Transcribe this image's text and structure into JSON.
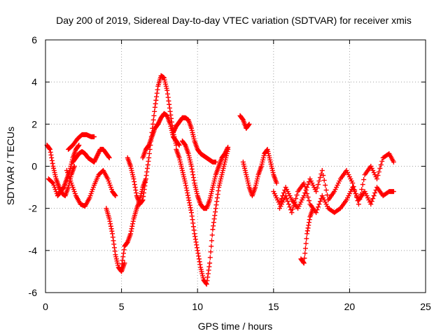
{
  "chart_data": {
    "type": "scatter",
    "title": "Day 200 of 2019, Sidereal Day-to-day VTEC variation (SDTVAR) for receiver xmis",
    "xlabel": "GPS time / hours",
    "ylabel": "SDTVAR / TECUs",
    "xlim": [
      0,
      25
    ],
    "ylim": [
      -6,
      6
    ],
    "xticks": [
      0,
      5,
      10,
      15,
      20,
      25
    ],
    "yticks": [
      -6,
      -4,
      -2,
      0,
      2,
      4,
      6
    ],
    "grid": true,
    "marker": "plus",
    "color": "#ff0000",
    "tracks": [
      {
        "name": "track-1",
        "x": [
          0.1,
          0.3,
          0.5,
          0.7,
          0.9,
          1.1,
          1.3,
          1.5,
          1.7,
          1.9
        ],
        "y": [
          1.0,
          0.8,
          0.0,
          -0.6,
          -1.0,
          -1.3,
          -1.4,
          -1.0,
          -0.4,
          0.0
        ]
      },
      {
        "name": "track-2",
        "x": [
          0.2,
          0.5,
          0.8,
          1.0,
          1.2,
          1.4,
          1.6,
          1.8,
          2.0,
          2.2
        ],
        "y": [
          -0.6,
          -0.8,
          -1.4,
          -1.2,
          -1.0,
          -0.6,
          -0.2,
          0.4,
          0.8,
          1.0
        ]
      },
      {
        "name": "track-3",
        "x": [
          1.5,
          1.8,
          2.1,
          2.4,
          2.7,
          3.0,
          3.2
        ],
        "y": [
          0.8,
          1.0,
          1.3,
          1.5,
          1.5,
          1.4,
          1.4
        ]
      },
      {
        "name": "track-4",
        "x": [
          1.8,
          2.0,
          2.2,
          2.4,
          2.6,
          2.8,
          3.0,
          3.2,
          3.4,
          3.6,
          3.8,
          4.0,
          4.2
        ],
        "y": [
          0.2,
          0.4,
          0.6,
          0.7,
          0.6,
          0.4,
          0.3,
          0.2,
          0.5,
          0.8,
          0.8,
          0.6,
          0.4
        ]
      },
      {
        "name": "track-5",
        "x": [
          1.4,
          1.7,
          2.0,
          2.3,
          2.6,
          2.9,
          3.2,
          3.5,
          3.8,
          4.1,
          4.4,
          4.6
        ],
        "y": [
          -0.2,
          -0.8,
          -1.4,
          -1.8,
          -1.9,
          -1.5,
          -0.9,
          -0.4,
          -0.2,
          -0.6,
          -1.2,
          -1.4
        ]
      },
      {
        "name": "track-6",
        "x": [
          4.0,
          4.2,
          4.4,
          4.6,
          4.8,
          5.0,
          5.2
        ],
        "y": [
          -2.0,
          -2.5,
          -3.2,
          -4.2,
          -4.8,
          -5.0,
          -4.6
        ]
      },
      {
        "name": "track-7",
        "x": [
          5.0,
          5.2,
          5.4,
          5.6,
          5.8,
          6.0,
          6.2,
          6.4,
          6.6
        ],
        "y": [
          -4.8,
          -3.8,
          -3.6,
          -3.2,
          -2.5,
          -2.0,
          -1.6,
          -1.0,
          -0.6
        ]
      },
      {
        "name": "track-8",
        "x": [
          5.4,
          5.6,
          5.8,
          6.0,
          6.2,
          6.4,
          6.6,
          6.8,
          7.0,
          7.2,
          7.4,
          7.6,
          7.8,
          8.0,
          8.2,
          8.4,
          8.6
        ],
        "y": [
          0.4,
          0.0,
          -0.6,
          -1.4,
          -1.8,
          -1.6,
          -0.6,
          0.4,
          1.6,
          2.8,
          3.8,
          4.3,
          4.2,
          3.6,
          2.6,
          1.6,
          1.0
        ]
      },
      {
        "name": "track-9",
        "x": [
          6.4,
          6.6,
          6.8,
          7.0,
          7.2,
          7.4,
          7.6,
          7.8,
          8.0,
          8.2,
          8.4,
          8.6,
          8.8
        ],
        "y": [
          0.4,
          0.8,
          1.0,
          1.4,
          1.8,
          2.0,
          2.3,
          2.5,
          2.4,
          2.0,
          1.4,
          1.2,
          1.0
        ]
      },
      {
        "name": "track-10",
        "x": [
          8.4,
          8.6,
          8.8,
          9.0,
          9.2,
          9.4,
          9.6,
          9.8,
          10.0,
          10.2,
          10.4,
          10.6,
          10.8,
          11.0,
          11.2
        ],
        "y": [
          1.6,
          1.9,
          2.1,
          2.3,
          2.3,
          2.2,
          1.8,
          1.2,
          0.8,
          0.6,
          0.5,
          0.4,
          0.3,
          0.2,
          0.2
        ]
      },
      {
        "name": "track-11",
        "x": [
          8.6,
          8.8,
          9.0,
          9.2,
          9.4,
          9.6,
          9.8,
          10.0,
          10.2,
          10.4,
          10.6,
          10.8,
          11.0,
          11.2,
          11.4,
          11.6,
          11.8,
          12.0
        ],
        "y": [
          0.8,
          0.4,
          -0.2,
          -0.8,
          -1.5,
          -2.2,
          -3.2,
          -4.0,
          -4.8,
          -5.4,
          -5.6,
          -4.6,
          -3.0,
          -2.0,
          -1.0,
          -0.4,
          0.2,
          0.8
        ]
      },
      {
        "name": "track-12",
        "x": [
          9.0,
          9.2,
          9.4,
          9.6,
          9.8,
          10.0,
          10.2,
          10.4,
          10.6,
          10.8,
          11.0,
          11.2,
          11.4,
          11.6,
          11.8,
          12.0
        ],
        "y": [
          1.2,
          1.0,
          0.6,
          0.0,
          -0.8,
          -1.4,
          -1.8,
          -2.0,
          -2.0,
          -1.6,
          -1.0,
          -0.4,
          0.0,
          0.4,
          0.6,
          0.9
        ]
      },
      {
        "name": "track-13",
        "x": [
          12.8,
          13.0,
          13.2,
          13.4
        ],
        "y": [
          2.4,
          2.2,
          1.8,
          2.0
        ]
      },
      {
        "name": "track-14",
        "x": [
          13.0,
          13.2,
          13.4,
          13.6,
          13.8,
          14.0,
          14.2,
          14.4,
          14.6,
          14.8,
          15.0,
          15.2
        ],
        "y": [
          0.2,
          -0.4,
          -1.0,
          -1.4,
          -1.0,
          -0.4,
          0.0,
          0.6,
          0.8,
          0.2,
          -0.4,
          -0.8
        ]
      },
      {
        "name": "track-15",
        "x": [
          15.0,
          15.4,
          15.8,
          16.2,
          16.6,
          17.0,
          17.4,
          17.8,
          18.2,
          18.6,
          19.0,
          19.4,
          19.8,
          20.2,
          20.6,
          21.0,
          21.4,
          21.8,
          22.2,
          22.6,
          22.9
        ],
        "y": [
          -1.2,
          -1.8,
          -1.0,
          -1.6,
          -2.0,
          -1.4,
          -0.6,
          -1.2,
          -0.2,
          -1.6,
          -1.2,
          -0.6,
          -0.2,
          -0.8,
          -1.8,
          -0.4,
          0.0,
          -0.6,
          0.4,
          0.6,
          0.2
        ]
      },
      {
        "name": "track-16",
        "x": [
          15.4,
          15.8,
          16.2,
          16.6,
          17.0,
          17.4,
          17.8,
          18.2,
          18.6,
          19.0,
          19.4,
          19.8,
          20.2,
          20.6,
          21.0,
          21.4,
          21.8,
          22.2,
          22.6,
          22.9
        ],
        "y": [
          -2.0,
          -1.4,
          -2.2,
          -1.2,
          -0.8,
          -1.8,
          -2.2,
          -1.4,
          -2.0,
          -2.2,
          -2.0,
          -1.6,
          -1.0,
          -1.6,
          -1.2,
          -1.8,
          -1.0,
          -1.4,
          -1.2,
          -1.2
        ]
      },
      {
        "name": "track-17",
        "x": [
          16.8,
          17.0,
          17.2,
          17.4,
          17.6
        ],
        "y": [
          -4.4,
          -4.6,
          -3.2,
          -2.4,
          -2.0
        ]
      }
    ]
  }
}
